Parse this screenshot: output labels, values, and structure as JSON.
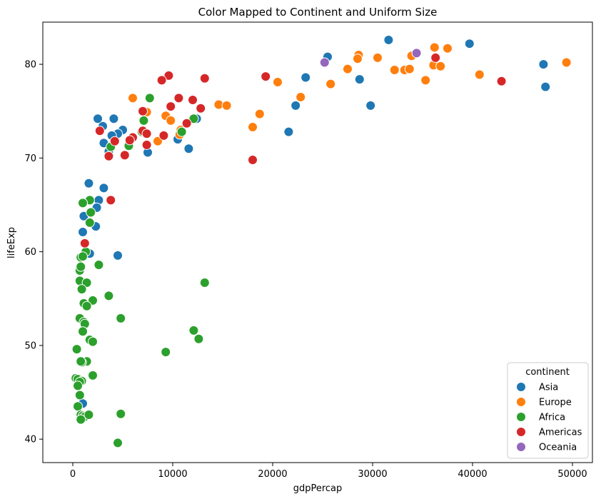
{
  "chart_data": {
    "type": "scatter",
    "title": "Color Mapped to Continent and Uniform Size",
    "xlabel": "gdpPercap",
    "ylabel": "lifeExp",
    "xlim": [
      -3000,
      52000
    ],
    "ylim": [
      37.5,
      84.5
    ],
    "xticks": [
      0,
      10000,
      20000,
      30000,
      40000,
      50000
    ],
    "yticks": [
      40,
      50,
      60,
      70,
      80
    ],
    "grid": false,
    "legend": {
      "title": "continent",
      "placement": "bottom-right"
    },
    "series": [
      {
        "name": "Asia",
        "color": "#1f77b4",
        "points": [
          [
            25500,
            80.8
          ],
          [
            31600,
            82.6
          ],
          [
            39700,
            82.2
          ],
          [
            47100,
            80.0
          ],
          [
            47300,
            77.6
          ],
          [
            23300,
            78.6
          ],
          [
            28700,
            78.4
          ],
          [
            29800,
            75.6
          ],
          [
            22300,
            75.6
          ],
          [
            21600,
            72.8
          ],
          [
            12400,
            74.2
          ],
          [
            11600,
            71.0
          ],
          [
            10500,
            72.0
          ],
          [
            7500,
            70.6
          ],
          [
            5000,
            73.0
          ],
          [
            4500,
            72.6
          ],
          [
            4100,
            74.2
          ],
          [
            3000,
            73.4
          ],
          [
            2500,
            74.2
          ],
          [
            3100,
            71.6
          ],
          [
            3600,
            70.7
          ],
          [
            3900,
            72.4
          ],
          [
            2600,
            65.5
          ],
          [
            2400,
            64.7
          ],
          [
            1600,
            67.3
          ],
          [
            3100,
            66.8
          ],
          [
            1100,
            63.8
          ],
          [
            1000,
            62.1
          ],
          [
            2300,
            62.7
          ],
          [
            1700,
            59.8
          ],
          [
            4500,
            59.6
          ],
          [
            1000,
            43.8
          ]
        ]
      },
      {
        "name": "Europe",
        "color": "#ff7f0e",
        "points": [
          [
            49400,
            80.2
          ],
          [
            36200,
            81.8
          ],
          [
            37500,
            81.7
          ],
          [
            33900,
            80.9
          ],
          [
            28600,
            81.0
          ],
          [
            30500,
            80.7
          ],
          [
            28500,
            80.6
          ],
          [
            36100,
            79.9
          ],
          [
            36800,
            79.8
          ],
          [
            27500,
            79.5
          ],
          [
            32200,
            79.4
          ],
          [
            33200,
            79.4
          ],
          [
            33700,
            79.5
          ],
          [
            40700,
            78.9
          ],
          [
            35300,
            78.3
          ],
          [
            25800,
            77.9
          ],
          [
            20500,
            78.1
          ],
          [
            22800,
            76.5
          ],
          [
            14600,
            75.7
          ],
          [
            15400,
            75.6
          ],
          [
            18700,
            74.7
          ],
          [
            18000,
            73.3
          ],
          [
            6000,
            76.4
          ],
          [
            7400,
            74.9
          ],
          [
            9300,
            74.5
          ],
          [
            9800,
            74.0
          ],
          [
            10800,
            73.0
          ],
          [
            10700,
            72.5
          ],
          [
            8500,
            71.8
          ]
        ]
      },
      {
        "name": "Africa",
        "color": "#2ca02c",
        "points": [
          [
            7700,
            76.4
          ],
          [
            12100,
            74.2
          ],
          [
            7100,
            74.0
          ],
          [
            6900,
            72.8
          ],
          [
            10900,
            72.8
          ],
          [
            5600,
            71.3
          ],
          [
            3800,
            71.2
          ],
          [
            1700,
            65.5
          ],
          [
            1000,
            65.2
          ],
          [
            1800,
            64.2
          ],
          [
            1700,
            63.1
          ],
          [
            1300,
            60.0
          ],
          [
            700,
            58.0
          ],
          [
            2600,
            58.6
          ],
          [
            800,
            59.4
          ],
          [
            1000,
            59.5
          ],
          [
            800,
            58.4
          ],
          [
            700,
            56.9
          ],
          [
            1400,
            56.7
          ],
          [
            900,
            56.0
          ],
          [
            3600,
            55.3
          ],
          [
            13200,
            56.7
          ],
          [
            2000,
            54.8
          ],
          [
            1100,
            54.5
          ],
          [
            1400,
            54.2
          ],
          [
            700,
            52.9
          ],
          [
            4800,
            52.9
          ],
          [
            1100,
            52.5
          ],
          [
            1200,
            52.3
          ],
          [
            1000,
            51.5
          ],
          [
            12100,
            51.6
          ],
          [
            1700,
            50.6
          ],
          [
            2000,
            50.4
          ],
          [
            12600,
            50.7
          ],
          [
            400,
            49.6
          ],
          [
            9300,
            49.3
          ],
          [
            1400,
            48.3
          ],
          [
            900,
            48.2
          ],
          [
            800,
            48.3
          ],
          [
            2000,
            46.8
          ],
          [
            300,
            46.5
          ],
          [
            500,
            46.4
          ],
          [
            900,
            46.2
          ],
          [
            700,
            46.1
          ],
          [
            500,
            45.7
          ],
          [
            700,
            44.7
          ],
          [
            500,
            43.5
          ],
          [
            800,
            42.6
          ],
          [
            1000,
            42.5
          ],
          [
            1200,
            42.4
          ],
          [
            1600,
            42.6
          ],
          [
            800,
            42.1
          ],
          [
            4800,
            42.7
          ],
          [
            4500,
            39.6
          ]
        ]
      },
      {
        "name": "Americas",
        "color": "#d62728",
        "points": [
          [
            42900,
            78.2
          ],
          [
            36300,
            80.7
          ],
          [
            19300,
            78.7
          ],
          [
            9600,
            78.8
          ],
          [
            8900,
            78.3
          ],
          [
            13200,
            78.5
          ],
          [
            10600,
            76.4
          ],
          [
            12000,
            76.2
          ],
          [
            9800,
            75.5
          ],
          [
            12800,
            75.3
          ],
          [
            7000,
            75.0
          ],
          [
            11400,
            73.7
          ],
          [
            2700,
            72.9
          ],
          [
            7000,
            72.9
          ],
          [
            7400,
            72.6
          ],
          [
            9100,
            72.4
          ],
          [
            6000,
            72.2
          ],
          [
            5700,
            71.9
          ],
          [
            4200,
            71.8
          ],
          [
            7400,
            71.4
          ],
          [
            3600,
            70.2
          ],
          [
            5200,
            70.3
          ],
          [
            18000,
            69.8
          ],
          [
            3800,
            65.5
          ],
          [
            1200,
            60.9
          ]
        ]
      },
      {
        "name": "Oceania",
        "color": "#9467bd",
        "points": [
          [
            34400,
            81.2
          ],
          [
            25200,
            80.2
          ]
        ]
      }
    ]
  }
}
